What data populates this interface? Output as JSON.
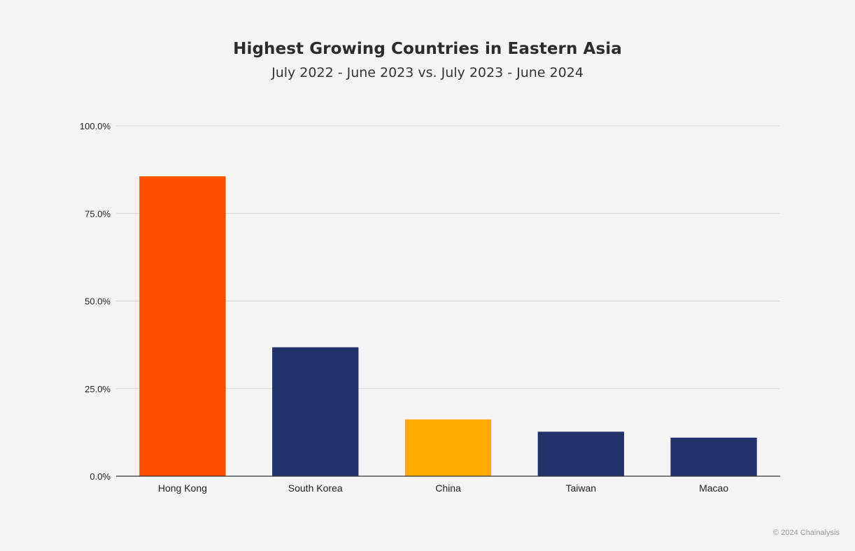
{
  "chart_data": {
    "type": "bar",
    "title": "Highest Growing Countries in Eastern Asia",
    "subtitle": "July 2022 - June 2023 vs. July 2023 - June 2024",
    "xlabel": "",
    "ylabel": "",
    "categories": [
      "Hong Kong",
      "South Korea",
      "China",
      "Taiwan",
      "Macao"
    ],
    "values": [
      85.6,
      36.8,
      16.2,
      12.7,
      11.0
    ],
    "bar_colors": [
      "#ff5000",
      "#22336b",
      "#fdab00",
      "#22336b",
      "#22336b"
    ],
    "ylim": [
      0,
      100
    ],
    "yticks": [
      0,
      25,
      50,
      75,
      100
    ],
    "ytick_labels": [
      "0.0%",
      "25.0%",
      "50.0%",
      "75.0%",
      "100.0%"
    ],
    "grid": true,
    "legend": "none"
  },
  "footer": {
    "copyright": "© 2024 Chainalysis"
  }
}
